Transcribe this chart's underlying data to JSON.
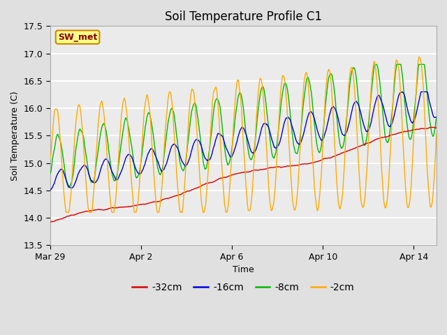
{
  "title": "Soil Temperature Profile C1",
  "xlabel": "Time",
  "ylabel": "Soil Temperature (C)",
  "annotation": "SW_met",
  "ylim": [
    13.5,
    17.5
  ],
  "yticks": [
    13.5,
    14.0,
    14.5,
    15.0,
    15.5,
    16.0,
    16.5,
    17.0,
    17.5
  ],
  "x_tick_labels": [
    "Mar 29",
    "Apr 2",
    "Apr 6",
    "Apr 10",
    "Apr 14"
  ],
  "x_tick_positions": [
    0,
    4,
    8,
    12,
    16
  ],
  "total_days": 17.0,
  "colors": {
    "-32cm": "#dd0000",
    "-16cm": "#0000dd",
    "-8cm": "#00bb00",
    "-2cm": "#ffaa00"
  },
  "legend_labels": [
    "-32cm",
    "-16cm",
    "-8cm",
    "-2cm"
  ],
  "fig_bg_color": "#e0e0e0",
  "plot_area_color": "#ebebeb",
  "grid_color": "#ffffff",
  "annotation_bg": "#ffff88",
  "annotation_border": "#cc8800",
  "annotation_text_color": "#880000",
  "title_fontsize": 12,
  "axis_label_fontsize": 9,
  "tick_fontsize": 9,
  "legend_fontsize": 10
}
